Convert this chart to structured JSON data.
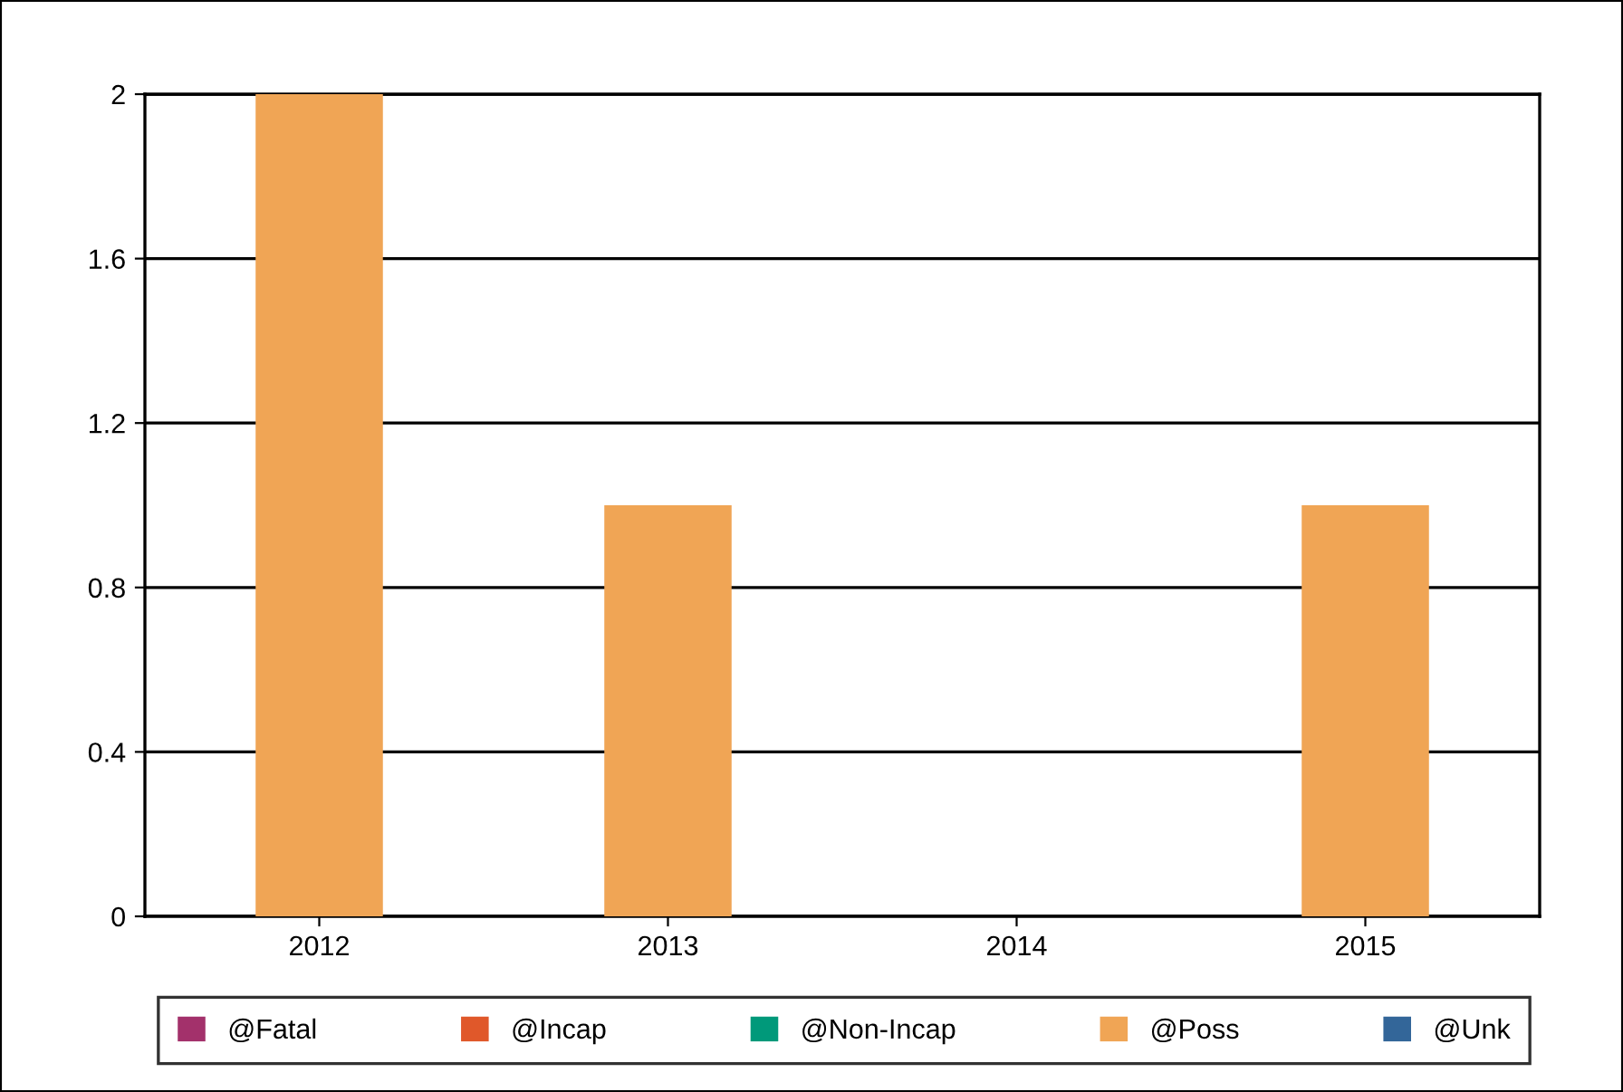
{
  "chart_data": {
    "type": "bar",
    "categories": [
      "2012",
      "2013",
      "2014",
      "2015"
    ],
    "series": [
      {
        "name": "@Fatal",
        "color": "#a3316b",
        "values": [
          0,
          0,
          0,
          0
        ]
      },
      {
        "name": "@Incap",
        "color": "#e0582a",
        "values": [
          0,
          0,
          0,
          0
        ]
      },
      {
        "name": "@Non-Incap",
        "color": "#00997a",
        "values": [
          0,
          0,
          0,
          0
        ]
      },
      {
        "name": "@Poss",
        "color": "#f0a555",
        "values": [
          2,
          1,
          0,
          1
        ]
      },
      {
        "name": "@Unk",
        "color": "#336699",
        "values": [
          0,
          0,
          0,
          0
        ]
      }
    ],
    "ylim": [
      0,
      2
    ],
    "yticks": [
      0,
      0.4,
      0.8,
      1.2,
      1.6,
      2
    ],
    "grid": "y",
    "legend": "bottom"
  }
}
